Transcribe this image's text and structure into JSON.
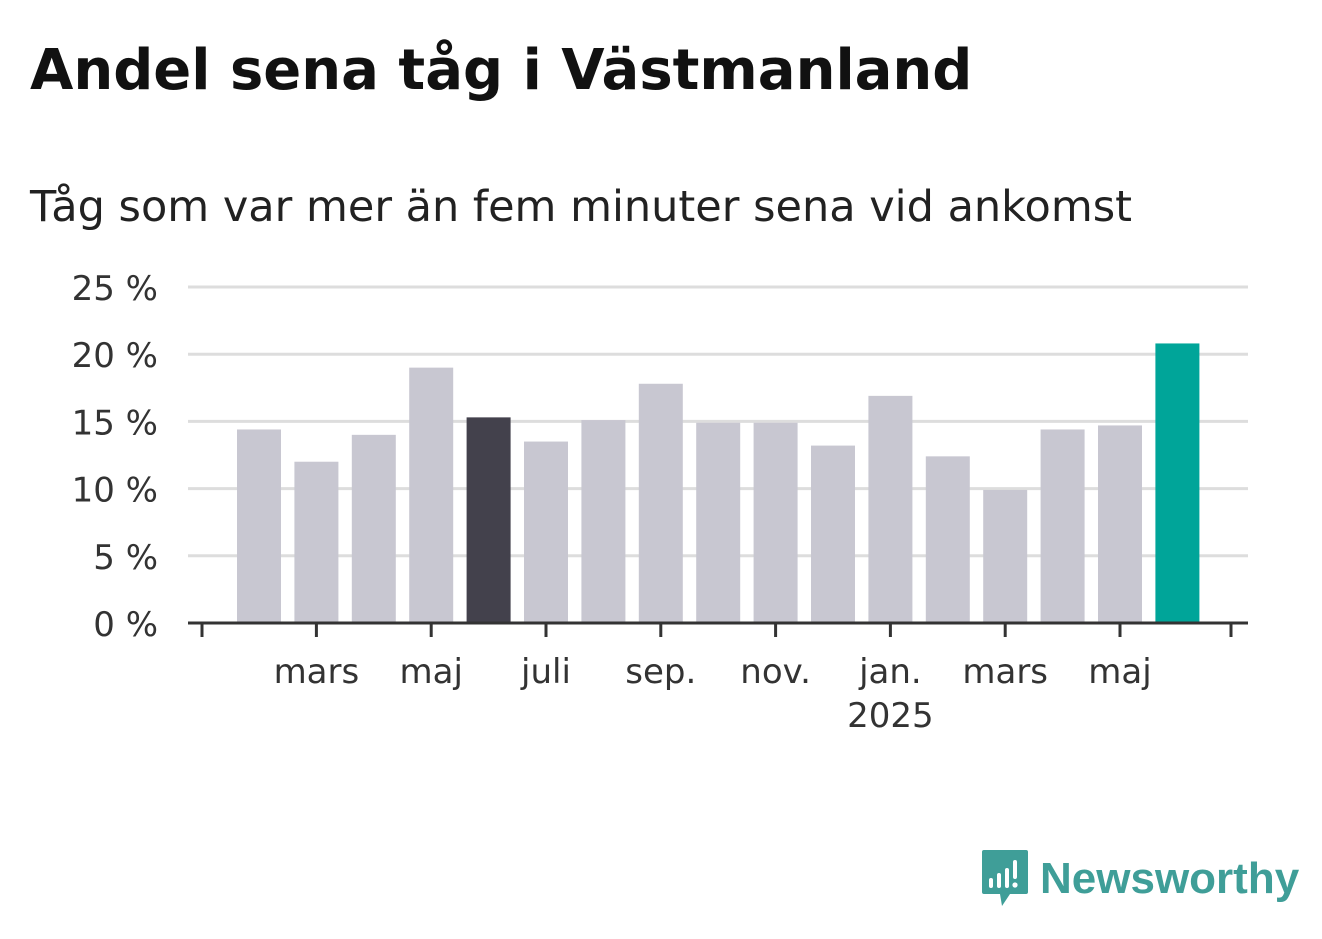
{
  "title": "Andel sena tåg i Västmanland",
  "subtitle": "Tåg som var mer än fem minuter sena vid ankomst",
  "brand": {
    "name": "Newsworthy",
    "color": "#3f9e98"
  },
  "colors": {
    "default_bar": "#c8c7d1",
    "highlight_bar": "#43414c",
    "latest_bar": "#00a599",
    "axis": "#333333",
    "grid": "#dddddd"
  },
  "chart_data": {
    "type": "bar",
    "title": "Andel sena tåg i Västmanland",
    "subtitle": "Tåg som var mer än fem minuter sena vid ankomst",
    "xlabel": "",
    "ylabel": "",
    "ylim": [
      0,
      25
    ],
    "yticks": [
      0,
      5,
      10,
      15,
      20,
      25
    ],
    "ytick_labels": [
      "0 %",
      "5 %",
      "10 %",
      "15 %",
      "20 %",
      "25 %"
    ],
    "grid": true,
    "categories": [
      "2024-02",
      "2024-03",
      "2024-04",
      "2024-05",
      "2024-06",
      "2024-07",
      "2024-08",
      "2024-09",
      "2024-10",
      "2024-11",
      "2024-12",
      "2025-01",
      "2025-02",
      "2025-03",
      "2025-04",
      "2025-05",
      "2025-06"
    ],
    "values": [
      14.4,
      12.0,
      14.0,
      19.0,
      15.3,
      13.5,
      15.1,
      17.8,
      14.9,
      14.9,
      13.2,
      16.9,
      12.4,
      9.9,
      14.4,
      14.7,
      20.8
    ],
    "highlight_index": 4,
    "latest_index": 16,
    "xtick_labels": [
      {
        "category": "2024-03",
        "label": "mars",
        "sub": ""
      },
      {
        "category": "2024-05",
        "label": "maj",
        "sub": ""
      },
      {
        "category": "2024-07",
        "label": "juli",
        "sub": ""
      },
      {
        "category": "2024-09",
        "label": "sep.",
        "sub": ""
      },
      {
        "category": "2024-11",
        "label": "nov.",
        "sub": ""
      },
      {
        "category": "2025-01",
        "label": "jan.",
        "sub": "2025"
      },
      {
        "category": "2025-03",
        "label": "mars",
        "sub": ""
      },
      {
        "category": "2025-05",
        "label": "maj",
        "sub": ""
      }
    ]
  }
}
